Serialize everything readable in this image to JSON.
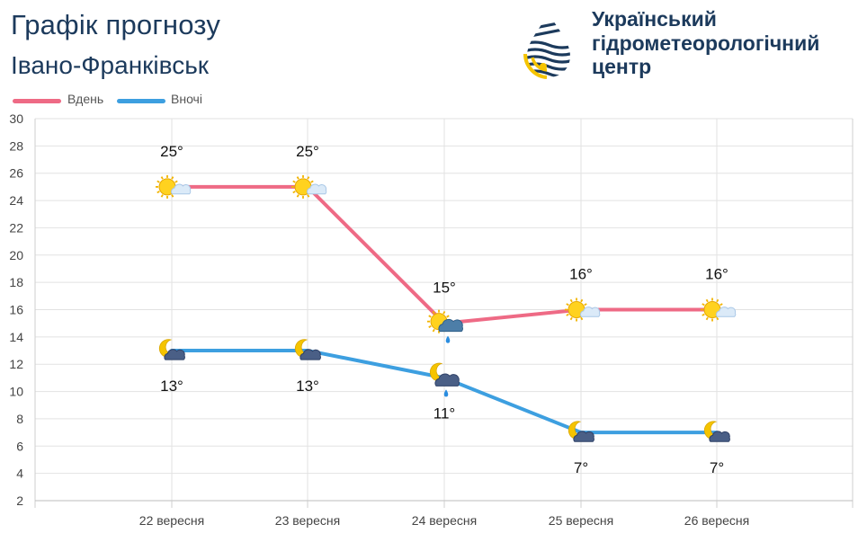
{
  "header": {
    "title": "Графік прогнозу",
    "city": "Івано-Франківськ",
    "org_lines": [
      "Український",
      "гідрометеорологічний",
      "центр"
    ]
  },
  "colors": {
    "day": "#ee6a85",
    "night": "#3d9fe0",
    "text_title": "#1c3a5c",
    "grid": "#e2e2e2"
  },
  "chart_data": {
    "type": "line",
    "categories": [
      "22 вересня",
      "23 вересня",
      "24 вересня",
      "25 вересня",
      "26 вересня"
    ],
    "series": [
      {
        "name": "Вдень",
        "values": [
          25,
          25,
          15,
          16,
          16
        ],
        "labels": [
          "25°",
          "25°",
          "15°",
          "16°",
          "16°"
        ],
        "icons": [
          "sun-cloud-icon",
          "sun-cloud-icon",
          "sun-cloud-rain-icon",
          "sun-cloud-icon",
          "sun-cloud-icon"
        ]
      },
      {
        "name": "Вночі",
        "values": [
          13,
          13,
          11,
          7,
          7
        ],
        "labels": [
          "13°",
          "13°",
          "11°",
          "7°",
          "7°"
        ],
        "icons": [
          "moon-cloud-icon",
          "moon-cloud-icon",
          "moon-cloud-rain-icon",
          "moon-cloud-icon",
          "moon-cloud-icon"
        ]
      }
    ],
    "yticks": [
      "2",
      "4",
      "6",
      "8",
      "10",
      "12",
      "14",
      "16",
      "18",
      "20",
      "22",
      "24",
      "26",
      "28",
      "30"
    ],
    "ylim": [
      2,
      30
    ],
    "grid": true,
    "legend": "top-left"
  }
}
